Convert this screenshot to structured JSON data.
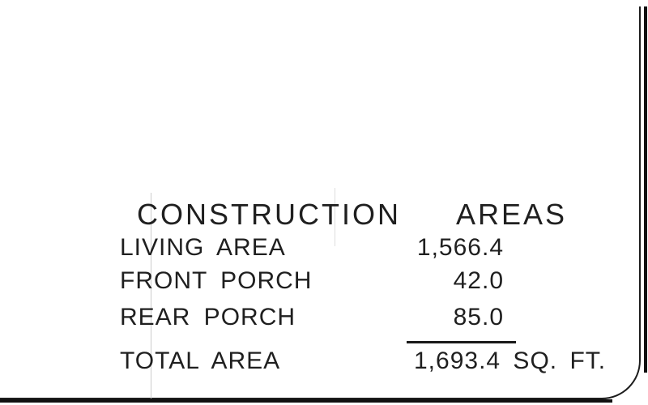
{
  "document": {
    "kind": "architectural-plan-area-schedule",
    "background_color": "#ffffff",
    "line_color": "#1c1c1c",
    "text_color": "#1f1f1f"
  },
  "title": {
    "word1": "CONSTRUCTION",
    "word2": "AREAS",
    "full": "CONSTRUCTION AREAS"
  },
  "table": {
    "rows": [
      {
        "label": "LIVING AREA",
        "value": "1,566.4"
      },
      {
        "label": "FRONT PORCH",
        "value": "42.0"
      },
      {
        "label": "REAR PORCH",
        "value": "85.0"
      }
    ],
    "total": {
      "label": "TOTAL AREA",
      "value": "1,693.4 SQ. FT."
    },
    "unit": "SQ. FT."
  },
  "chart_data": {
    "type": "table",
    "title": "CONSTRUCTION AREAS",
    "categories": [
      "LIVING AREA",
      "FRONT PORCH",
      "REAR PORCH",
      "TOTAL AREA"
    ],
    "values": [
      1566.4,
      42.0,
      85.0,
      1693.4
    ],
    "unit": "SQ. FT."
  }
}
